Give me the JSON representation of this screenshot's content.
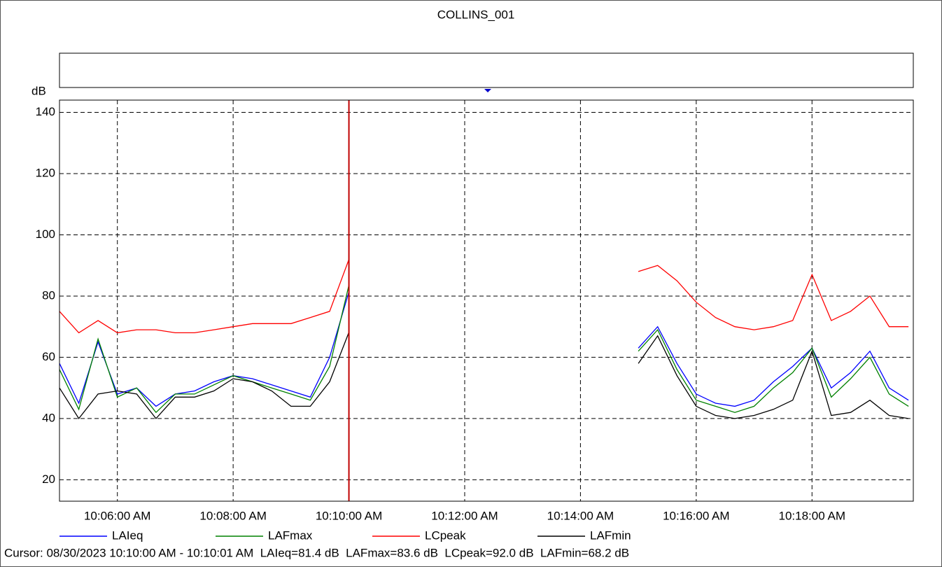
{
  "chart_data": {
    "type": "line",
    "title": "COLLINS_001",
    "ylabel": "dB",
    "x": [
      "10:05:00",
      "10:05:20",
      "10:05:40",
      "10:06:00",
      "10:06:20",
      "10:06:40",
      "10:07:00",
      "10:07:20",
      "10:07:40",
      "10:08:00",
      "10:08:20",
      "10:08:40",
      "10:09:00",
      "10:09:20",
      "10:09:40",
      "10:10:00",
      "10:10:20",
      "10:10:40",
      "10:11:00",
      "10:11:20",
      "10:11:40",
      "10:12:00",
      "10:12:20",
      "10:12:40",
      "10:13:00",
      "10:13:20",
      "10:13:40",
      "10:14:00",
      "10:14:20",
      "10:14:40",
      "10:15:00",
      "10:15:20",
      "10:15:40",
      "10:16:00",
      "10:16:20",
      "10:16:40",
      "10:17:00",
      "10:17:20",
      "10:17:40",
      "10:18:00",
      "10:18:20",
      "10:18:40",
      "10:19:00",
      "10:19:20",
      "10:19:40"
    ],
    "series": [
      {
        "name": "LAIeq",
        "color": "#0000ff",
        "values": [
          58,
          45,
          65,
          48,
          50,
          44,
          48,
          49,
          52,
          54,
          53,
          51,
          49,
          47,
          60,
          81.4,
          null,
          null,
          null,
          null,
          null,
          null,
          null,
          null,
          null,
          null,
          null,
          null,
          null,
          null,
          63,
          70,
          58,
          48,
          45,
          44,
          46,
          52,
          57,
          63,
          50,
          55,
          62,
          50,
          46
        ]
      },
      {
        "name": "LAFmax",
        "color": "#008000",
        "values": [
          56,
          43,
          66,
          47,
          50,
          42,
          48,
          48,
          51,
          54,
          52,
          50,
          48,
          46,
          57,
          83.6,
          null,
          null,
          null,
          null,
          null,
          null,
          null,
          null,
          null,
          null,
          null,
          null,
          null,
          null,
          62,
          69,
          56,
          46,
          44,
          42,
          44,
          50,
          55,
          63,
          47,
          53,
          60,
          48,
          44
        ]
      },
      {
        "name": "LCpeak",
        "color": "#ff0000",
        "values": [
          75,
          68,
          72,
          68,
          69,
          69,
          68,
          68,
          69,
          70,
          71,
          71,
          71,
          73,
          75,
          92,
          null,
          null,
          null,
          null,
          null,
          null,
          null,
          null,
          null,
          null,
          null,
          null,
          null,
          null,
          88,
          90,
          85,
          78,
          73,
          70,
          69,
          70,
          72,
          87,
          72,
          75,
          80,
          70,
          70
        ]
      },
      {
        "name": "LAFmin",
        "color": "#000000",
        "values": [
          50,
          40,
          48,
          49,
          48,
          40,
          47,
          47,
          49,
          53,
          52,
          49,
          44,
          44,
          52,
          68.2,
          null,
          null,
          null,
          null,
          null,
          null,
          null,
          null,
          null,
          null,
          null,
          null,
          null,
          null,
          58,
          67,
          54,
          44,
          41,
          40,
          41,
          43,
          46,
          62,
          41,
          42,
          46,
          41,
          40
        ]
      }
    ],
    "xlim": [
      "10:05:00",
      "10:19:45"
    ],
    "xticks": [
      {
        "value": "10:06:00",
        "label": "10:06:00 AM"
      },
      {
        "value": "10:08:00",
        "label": "10:08:00 AM"
      },
      {
        "value": "10:10:00",
        "label": "10:10:00 AM"
      },
      {
        "value": "10:12:00",
        "label": "10:12:00 AM"
      },
      {
        "value": "10:14:00",
        "label": "10:14:00 AM"
      },
      {
        "value": "10:16:00",
        "label": "10:16:00 AM"
      },
      {
        "value": "10:18:00",
        "label": "10:18:00 AM"
      }
    ],
    "ylim": [
      13,
      144
    ],
    "yticks": [
      20,
      40,
      60,
      80,
      100,
      120,
      140
    ],
    "grid": true,
    "cursor_text": "Cursor: 08/30/2023 10:10:00 AM - 10:10:01 AM  LAIeq=81.4 dB  LAFmax=83.6 dB  LCpeak=92.0 dB  LAFmin=68.2 dB"
  }
}
